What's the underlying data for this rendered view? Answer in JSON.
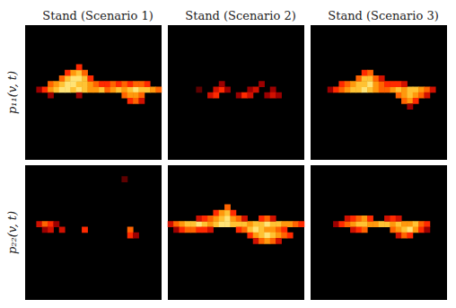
{
  "chart_data": {
    "type": "heatmap",
    "columns": [
      "Stand (Scenario 1)",
      "Stand (Scenario 2)",
      "Stand (Scenario 3)"
    ],
    "rows": [
      "p₁₁(v, t)",
      "p₂₂(v, t)"
    ],
    "shape": [
      24,
      24
    ],
    "color": "hot",
    "color_range": [
      0,
      1
    ],
    "tick_labels": false,
    "panels": [
      [
        [
          2,
          12,
          0.3
        ],
        [
          3,
          12,
          0.5
        ],
        [
          4,
          12,
          0.7
        ],
        [
          5,
          12,
          0.8
        ],
        [
          6,
          12,
          0.9
        ],
        [
          7,
          12,
          0.9
        ],
        [
          8,
          12,
          0.8
        ],
        [
          9,
          12,
          0.9
        ],
        [
          10,
          12,
          0.8
        ],
        [
          11,
          12,
          0.7
        ],
        [
          12,
          12,
          0.7
        ],
        [
          13,
          12,
          0.8
        ],
        [
          14,
          12,
          0.6
        ],
        [
          15,
          12,
          0.7
        ],
        [
          16,
          12,
          0.8
        ],
        [
          17,
          12,
          0.7
        ],
        [
          18,
          12,
          0.8
        ],
        [
          19,
          12,
          0.9
        ],
        [
          20,
          12,
          0.8
        ],
        [
          21,
          12,
          0.8
        ],
        [
          22,
          12,
          0.7
        ],
        [
          23,
          12,
          0.6
        ],
        [
          4,
          13,
          0.6
        ],
        [
          5,
          13,
          0.7
        ],
        [
          6,
          13,
          0.8
        ],
        [
          7,
          13,
          0.9
        ],
        [
          8,
          13,
          0.9
        ],
        [
          9,
          13,
          0.8
        ],
        [
          10,
          13,
          0.8
        ],
        [
          11,
          13,
          0.7
        ],
        [
          12,
          13,
          0.6
        ],
        [
          13,
          13,
          0.5
        ],
        [
          14,
          13,
          0.5
        ],
        [
          15,
          13,
          0.6
        ],
        [
          16,
          13,
          0.5
        ],
        [
          17,
          13,
          0.6
        ],
        [
          18,
          13,
          0.5
        ],
        [
          19,
          13,
          0.6
        ],
        [
          20,
          13,
          0.6
        ],
        [
          21,
          13,
          0.5
        ],
        [
          6,
          14,
          0.6
        ],
        [
          7,
          14,
          0.8
        ],
        [
          8,
          14,
          0.9
        ],
        [
          9,
          14,
          0.9
        ],
        [
          10,
          14,
          0.8
        ],
        [
          11,
          14,
          0.5
        ],
        [
          7,
          15,
          0.5
        ],
        [
          8,
          15,
          0.7
        ],
        [
          9,
          15,
          0.8
        ],
        [
          10,
          15,
          0.6
        ],
        [
          9,
          16,
          0.5
        ],
        [
          4,
          11,
          0.3
        ],
        [
          9,
          11,
          0.3
        ],
        [
          17,
          11,
          0.6
        ],
        [
          18,
          11,
          0.7
        ],
        [
          19,
          11,
          0.7
        ],
        [
          20,
          11,
          0.6
        ],
        [
          18,
          10,
          0.5
        ],
        [
          19,
          10,
          0.6
        ],
        [
          20,
          10,
          0.4
        ]
      ],
      [
        [
          5,
          12,
          0.2
        ],
        [
          8,
          12,
          0.4
        ],
        [
          9,
          12,
          0.5
        ],
        [
          10,
          12,
          0.3
        ],
        [
          14,
          12,
          0.3
        ],
        [
          15,
          12,
          0.4
        ],
        [
          18,
          12,
          0.3
        ],
        [
          7,
          11,
          0.4
        ],
        [
          8,
          11,
          0.5
        ],
        [
          12,
          11,
          0.3
        ],
        [
          13,
          11,
          0.5
        ],
        [
          14,
          11,
          0.4
        ],
        [
          17,
          11,
          0.3
        ],
        [
          18,
          11,
          0.4
        ],
        [
          19,
          11,
          0.3
        ],
        [
          9,
          13,
          0.3
        ],
        [
          16,
          13,
          0.3
        ]
      ],
      [
        [
          3,
          12,
          0.3
        ],
        [
          4,
          12,
          0.5
        ],
        [
          5,
          12,
          0.6
        ],
        [
          6,
          12,
          0.7
        ],
        [
          7,
          12,
          0.8
        ],
        [
          8,
          12,
          0.8
        ],
        [
          9,
          12,
          0.9
        ],
        [
          10,
          12,
          0.8
        ],
        [
          11,
          12,
          0.7
        ],
        [
          12,
          12,
          0.6
        ],
        [
          13,
          12,
          0.6
        ],
        [
          14,
          12,
          0.7
        ],
        [
          15,
          12,
          0.8
        ],
        [
          16,
          12,
          0.7
        ],
        [
          17,
          12,
          0.8
        ],
        [
          18,
          12,
          0.8
        ],
        [
          19,
          12,
          0.7
        ],
        [
          20,
          12,
          0.6
        ],
        [
          21,
          12,
          0.4
        ],
        [
          5,
          13,
          0.5
        ],
        [
          6,
          13,
          0.6
        ],
        [
          7,
          13,
          0.7
        ],
        [
          8,
          13,
          0.8
        ],
        [
          9,
          13,
          0.8
        ],
        [
          10,
          13,
          0.9
        ],
        [
          11,
          13,
          0.7
        ],
        [
          12,
          13,
          0.6
        ],
        [
          13,
          13,
          0.5
        ],
        [
          14,
          13,
          0.5
        ],
        [
          15,
          13,
          0.5
        ],
        [
          16,
          13,
          0.4
        ],
        [
          8,
          14,
          0.6
        ],
        [
          9,
          14,
          0.8
        ],
        [
          10,
          14,
          0.8
        ],
        [
          11,
          14,
          0.6
        ],
        [
          12,
          14,
          0.4
        ],
        [
          9,
          15,
          0.5
        ],
        [
          10,
          15,
          0.6
        ],
        [
          15,
          11,
          0.6
        ],
        [
          16,
          11,
          0.7
        ],
        [
          17,
          11,
          0.8
        ],
        [
          18,
          11,
          0.7
        ],
        [
          19,
          11,
          0.6
        ],
        [
          20,
          11,
          0.4
        ],
        [
          16,
          10,
          0.6
        ],
        [
          17,
          10,
          0.7
        ],
        [
          18,
          10,
          0.5
        ],
        [
          17,
          9,
          0.3
        ]
      ],
      [
        [
          2,
          13,
          0.4
        ],
        [
          3,
          13,
          0.6
        ],
        [
          4,
          13,
          0.5
        ],
        [
          5,
          13,
          0.3
        ],
        [
          3,
          12,
          0.3
        ],
        [
          4,
          12,
          0.4
        ],
        [
          6,
          12,
          0.4
        ],
        [
          10,
          12,
          0.5
        ],
        [
          18,
          12,
          0.6
        ],
        [
          18,
          11,
          0.5
        ],
        [
          19,
          11,
          0.3
        ],
        [
          17,
          21,
          0.2
        ]
      ],
      [
        [
          0,
          13,
          0.4
        ],
        [
          1,
          13,
          0.6
        ],
        [
          2,
          13,
          0.7
        ],
        [
          3,
          13,
          0.8
        ],
        [
          4,
          13,
          0.8
        ],
        [
          5,
          13,
          0.9
        ],
        [
          6,
          13,
          0.8
        ],
        [
          7,
          13,
          0.7
        ],
        [
          8,
          13,
          0.8
        ],
        [
          9,
          13,
          0.9
        ],
        [
          10,
          13,
          0.9
        ],
        [
          11,
          13,
          0.8
        ],
        [
          12,
          13,
          0.8
        ],
        [
          13,
          13,
          0.8
        ],
        [
          14,
          13,
          0.7
        ],
        [
          15,
          13,
          0.8
        ],
        [
          16,
          13,
          0.8
        ],
        [
          17,
          13,
          0.9
        ],
        [
          18,
          13,
          0.8
        ],
        [
          19,
          13,
          0.8
        ],
        [
          20,
          13,
          0.7
        ],
        [
          21,
          13,
          0.7
        ],
        [
          22,
          13,
          0.6
        ],
        [
          23,
          13,
          0.5
        ],
        [
          1,
          12,
          0.3
        ],
        [
          2,
          12,
          0.5
        ],
        [
          3,
          12,
          0.6
        ],
        [
          4,
          12,
          0.6
        ],
        [
          5,
          12,
          0.5
        ],
        [
          6,
          12,
          0.5
        ],
        [
          7,
          12,
          0.4
        ],
        [
          12,
          12,
          0.5
        ],
        [
          13,
          12,
          0.6
        ],
        [
          14,
          12,
          0.8
        ],
        [
          15,
          12,
          0.9
        ],
        [
          16,
          12,
          0.8
        ],
        [
          17,
          12,
          0.7
        ],
        [
          18,
          12,
          0.7
        ],
        [
          19,
          12,
          0.6
        ],
        [
          20,
          12,
          0.5
        ],
        [
          5,
          14,
          0.4
        ],
        [
          6,
          14,
          0.5
        ],
        [
          7,
          14,
          0.6
        ],
        [
          8,
          14,
          0.7
        ],
        [
          9,
          14,
          0.8
        ],
        [
          10,
          14,
          0.9
        ],
        [
          11,
          14,
          0.7
        ],
        [
          12,
          14,
          0.6
        ],
        [
          13,
          14,
          0.4
        ],
        [
          16,
          14,
          0.5
        ],
        [
          17,
          14,
          0.6
        ],
        [
          18,
          14,
          0.4
        ],
        [
          8,
          15,
          0.5
        ],
        [
          9,
          15,
          0.7
        ],
        [
          10,
          15,
          0.8
        ],
        [
          11,
          15,
          0.5
        ],
        [
          10,
          16,
          0.6
        ],
        [
          14,
          11,
          0.5
        ],
        [
          15,
          11,
          0.7
        ],
        [
          16,
          11,
          0.8
        ],
        [
          17,
          11,
          0.9
        ],
        [
          18,
          11,
          0.8
        ],
        [
          19,
          11,
          0.7
        ],
        [
          20,
          11,
          0.6
        ],
        [
          21,
          11,
          0.5
        ],
        [
          15,
          10,
          0.4
        ],
        [
          16,
          10,
          0.6
        ],
        [
          17,
          10,
          0.7
        ],
        [
          18,
          10,
          0.6
        ],
        [
          19,
          10,
          0.4
        ]
      ],
      [
        [
          4,
          13,
          0.3
        ],
        [
          5,
          13,
          0.5
        ],
        [
          6,
          13,
          0.6
        ],
        [
          7,
          13,
          0.7
        ],
        [
          8,
          13,
          0.8
        ],
        [
          9,
          13,
          0.8
        ],
        [
          10,
          13,
          0.7
        ],
        [
          11,
          13,
          0.7
        ],
        [
          12,
          13,
          0.8
        ],
        [
          13,
          13,
          0.8
        ],
        [
          14,
          13,
          0.7
        ],
        [
          15,
          13,
          0.8
        ],
        [
          16,
          13,
          0.7
        ],
        [
          17,
          13,
          0.7
        ],
        [
          18,
          13,
          0.8
        ],
        [
          19,
          13,
          0.6
        ],
        [
          20,
          13,
          0.5
        ],
        [
          6,
          14,
          0.4
        ],
        [
          7,
          14,
          0.5
        ],
        [
          8,
          14,
          0.6
        ],
        [
          9,
          14,
          0.7
        ],
        [
          10,
          14,
          0.5
        ],
        [
          13,
          14,
          0.4
        ],
        [
          14,
          14,
          0.5
        ],
        [
          15,
          14,
          0.4
        ],
        [
          7,
          12,
          0.4
        ],
        [
          8,
          12,
          0.5
        ],
        [
          9,
          12,
          0.6
        ],
        [
          14,
          12,
          0.6
        ],
        [
          15,
          12,
          0.7
        ],
        [
          16,
          12,
          0.8
        ],
        [
          17,
          12,
          0.9
        ],
        [
          18,
          12,
          0.7
        ],
        [
          19,
          12,
          0.5
        ],
        [
          20,
          12,
          0.3
        ],
        [
          15,
          11,
          0.4
        ],
        [
          16,
          11,
          0.6
        ],
        [
          17,
          11,
          0.5
        ]
      ]
    ]
  }
}
